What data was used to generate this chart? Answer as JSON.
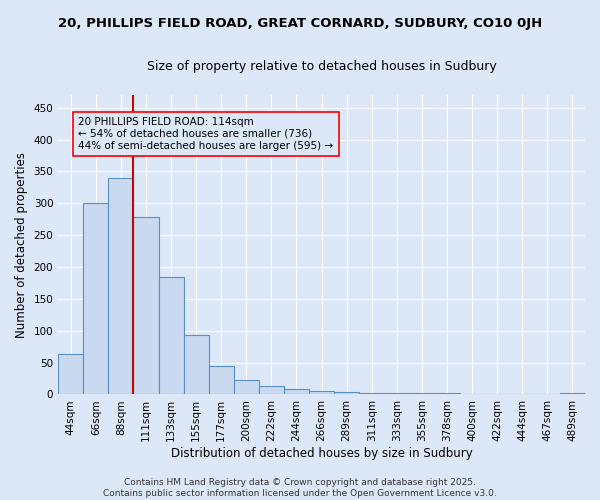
{
  "title1": "20, PHILLIPS FIELD ROAD, GREAT CORNARD, SUDBURY, CO10 0JH",
  "title2": "Size of property relative to detached houses in Sudbury",
  "xlabel": "Distribution of detached houses by size in Sudbury",
  "ylabel": "Number of detached properties",
  "bar_labels": [
    "44sqm",
    "66sqm",
    "88sqm",
    "111sqm",
    "133sqm",
    "155sqm",
    "177sqm",
    "200sqm",
    "222sqm",
    "244sqm",
    "266sqm",
    "289sqm",
    "311sqm",
    "333sqm",
    "355sqm",
    "378sqm",
    "400sqm",
    "422sqm",
    "444sqm",
    "467sqm",
    "489sqm"
  ],
  "bar_values": [
    63,
    301,
    340,
    279,
    185,
    93,
    45,
    23,
    14,
    8,
    5,
    4,
    3,
    2,
    2,
    3,
    0,
    1,
    0,
    1,
    3
  ],
  "bar_color": "#c9d9f0",
  "bar_edge_color": "#5a8fc3",
  "vline_color": "#cc0000",
  "vline_index": 2.5,
  "annotation_text": "20 PHILLIPS FIELD ROAD: 114sqm\n← 54% of detached houses are smaller (736)\n44% of semi-detached houses are larger (595) →",
  "ylim": [
    0,
    470
  ],
  "yticks": [
    0,
    50,
    100,
    150,
    200,
    250,
    300,
    350,
    400,
    450
  ],
  "background_color": "#dce8f8",
  "grid_color": "#ffffff",
  "footer_text": "Contains HM Land Registry data © Crown copyright and database right 2025.\nContains public sector information licensed under the Open Government Licence v3.0.",
  "title1_fontsize": 9.5,
  "title2_fontsize": 9,
  "xlabel_fontsize": 8.5,
  "ylabel_fontsize": 8.5,
  "tick_fontsize": 7.5,
  "annotation_fontsize": 7.5,
  "footer_fontsize": 6.5
}
